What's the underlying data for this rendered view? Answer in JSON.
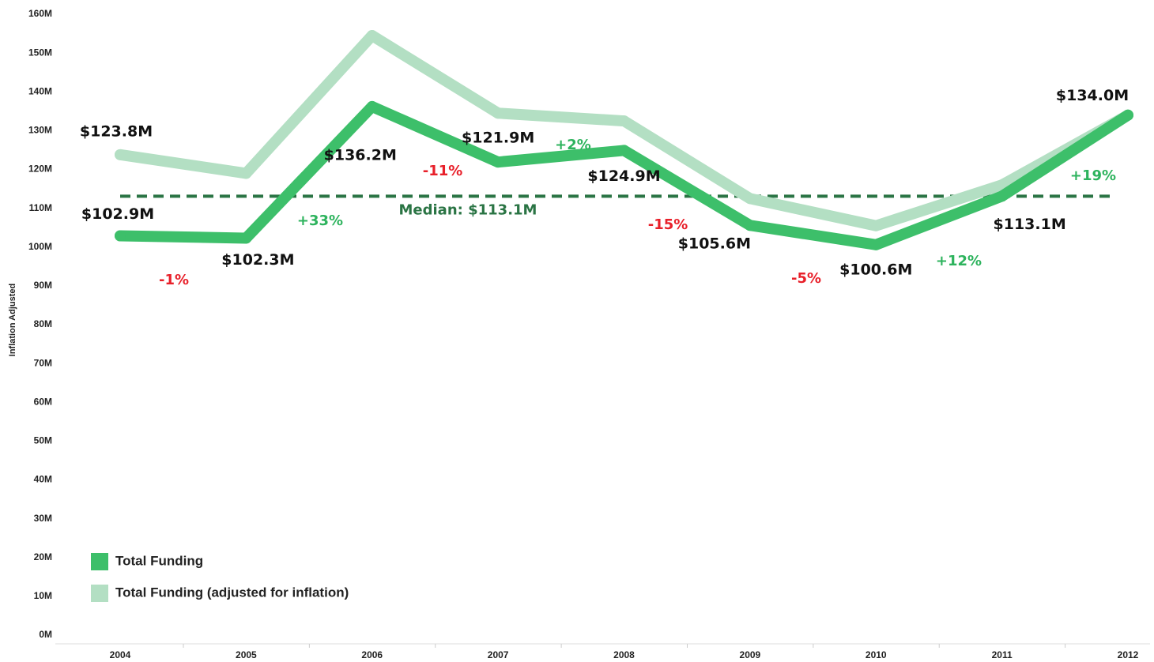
{
  "chart_data": {
    "type": "line",
    "y_axis_label": "Inflation Adjusted",
    "categories": [
      "2004",
      "2005",
      "2006",
      "2007",
      "2008",
      "2009",
      "2010",
      "2011",
      "2012"
    ],
    "series": [
      {
        "name": "Total Funding (adjusted for inflation)",
        "color": "#b3dfc3",
        "values": [
          123.8,
          119,
          154.5,
          134.5,
          132.5,
          112.5,
          105.5,
          116,
          134
        ],
        "value_labels": [
          "$123.8M",
          null,
          null,
          null,
          null,
          null,
          null,
          null,
          null
        ]
      },
      {
        "name": "Total Funding",
        "color": "#3dbf6a",
        "values": [
          102.9,
          102.3,
          136.2,
          121.9,
          124.9,
          105.6,
          100.6,
          113.1,
          134.0
        ],
        "value_labels": [
          "$102.9M",
          "$102.3M",
          "$136.2M",
          "$121.9M",
          "$124.9M",
          "$105.6M",
          "$100.6M",
          "$113.1M",
          "$134.0M"
        ]
      }
    ],
    "change_labels": [
      {
        "text": "-1%",
        "color": "#e8202a"
      },
      {
        "text": "+33%",
        "color": "#2db35d"
      },
      {
        "text": "-11%",
        "color": "#e8202a"
      },
      {
        "text": "+2%",
        "color": "#2db35d"
      },
      {
        "text": "-15%",
        "color": "#e8202a"
      },
      {
        "text": "-5%",
        "color": "#e8202a"
      },
      {
        "text": "+12%",
        "color": "#2db35d"
      },
      {
        "text": "+19%",
        "color": "#2db35d"
      }
    ],
    "median": {
      "value": 113.1,
      "label": "Median: $113.1M",
      "color": "#2a7444"
    },
    "ylim": [
      0,
      160
    ],
    "yticks": [
      {
        "value": 0,
        "label": "0M"
      },
      {
        "value": 10,
        "label": "10M"
      },
      {
        "value": 20,
        "label": "20M"
      },
      {
        "value": 30,
        "label": "30M"
      },
      {
        "value": 40,
        "label": "40M"
      },
      {
        "value": 50,
        "label": "50M"
      },
      {
        "value": 60,
        "label": "60M"
      },
      {
        "value": 70,
        "label": "70M"
      },
      {
        "value": 80,
        "label": "80M"
      },
      {
        "value": 90,
        "label": "90M"
      },
      {
        "value": 100,
        "label": "100M"
      },
      {
        "value": 110,
        "label": "110M"
      },
      {
        "value": 120,
        "label": "120M"
      },
      {
        "value": 130,
        "label": "130M"
      },
      {
        "value": 140,
        "label": "140M"
      },
      {
        "value": 150,
        "label": "150M"
      },
      {
        "value": 160,
        "label": "160M"
      }
    ],
    "legend": "bottom-left",
    "grid": false
  }
}
